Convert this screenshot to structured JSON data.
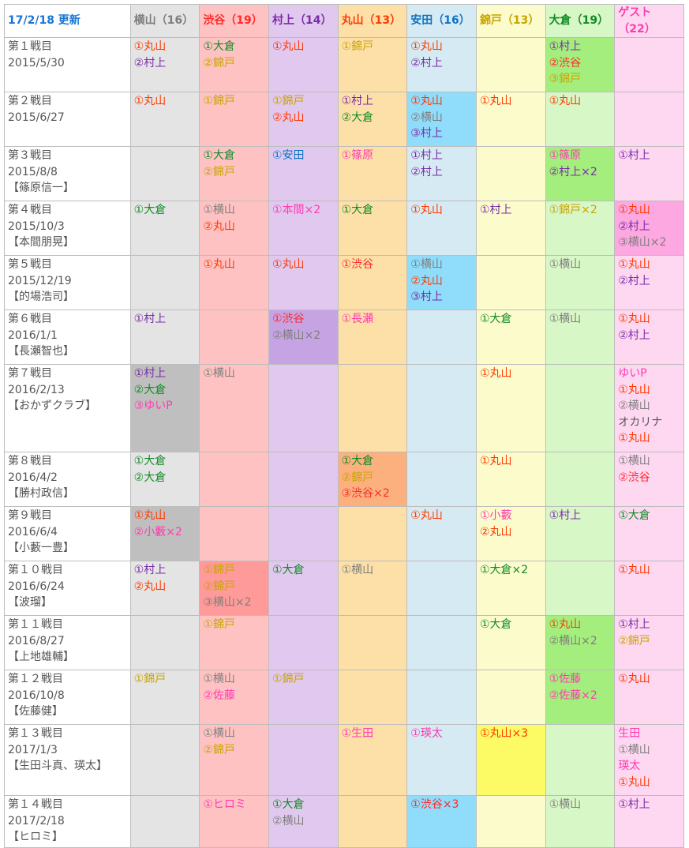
{
  "header": {
    "first": "17/2/18 更新",
    "first_color": "#1976d2",
    "members": [
      {
        "label": "横山（16）",
        "color": "#7d7d7d",
        "bg": "#e4e4e4",
        "hl": "#bfbfbf"
      },
      {
        "label": "渋谷（19）",
        "color": "#ff2a2a",
        "bg": "#ffc2c2",
        "hl": "#ff9a9a"
      },
      {
        "label": "村上（14）",
        "color": "#7a2ca8",
        "bg": "#e1c8ef",
        "hl": "#c6a4e4"
      },
      {
        "label": "丸山（13）",
        "color": "#ff3a00",
        "bg": "#fde0a8",
        "hl": "#fbb07e"
      },
      {
        "label": "安田（16）",
        "color": "#0d73c4",
        "bg": "#d6eaf3",
        "hl": "#8fdcfb"
      },
      {
        "label": "錦戸（13）",
        "color": "#c9a400",
        "bg": "#fcfbcc",
        "hl": "#fcfb66"
      },
      {
        "label": "大倉（19）",
        "color": "#0f8a26",
        "bg": "#d8f7c6",
        "hl": "#a4ee7d"
      },
      {
        "label": "ゲスト（22）",
        "color": "#ff3bb0",
        "bg": "#fed7f1",
        "hl": "#fda8e0"
      }
    ]
  },
  "person_colors": {
    "横山": "#7d7d7d",
    "渋谷": "#ff2a2a",
    "村上": "#7a2ca8",
    "丸山": "#ff3a00",
    "安田": "#0d73c4",
    "錦戸": "#c9a400",
    "大倉": "#0f8a26",
    "篠原": "#ff3bb0",
    "本間": "#ff3bb0",
    "長瀬": "#ff3bb0",
    "ゆいP": "#ff3bb0",
    "小藪": "#ff3bb0",
    "佐藤": "#ff3bb0",
    "生田": "#ff3bb0",
    "瑛太": "#ff3bb0",
    "ヒロミ": "#ff3bb0"
  },
  "rows": [
    {
      "title": "第１戦目",
      "date": "2015/5/30",
      "guest": "",
      "cells": [
        [
          "①丸山",
          "②村上"
        ],
        [
          "①大倉",
          "②錦戸"
        ],
        [
          "①丸山"
        ],
        [
          "①錦戸"
        ],
        [
          "①丸山",
          "②村上"
        ],
        [],
        [
          "①村上",
          "②渋谷",
          "③錦戸"
        ],
        []
      ],
      "hl": [
        false,
        false,
        false,
        false,
        false,
        false,
        true,
        false
      ]
    },
    {
      "title": "第２戦目",
      "date": "2015/6/27",
      "guest": "",
      "cells": [
        [
          "①丸山"
        ],
        [
          "①錦戸"
        ],
        [
          "①錦戸",
          "②丸山"
        ],
        [
          "①村上",
          "②大倉"
        ],
        [
          "①丸山",
          "②横山",
          "③村上"
        ],
        [
          "①丸山"
        ],
        [
          "①丸山"
        ],
        []
      ],
      "hl": [
        false,
        false,
        false,
        false,
        true,
        false,
        false,
        false
      ]
    },
    {
      "title": "第３戦目",
      "date": "2015/8/8",
      "guest": "【篠原信一】",
      "cells": [
        [],
        [
          "①大倉",
          "②錦戸"
        ],
        [
          "①安田"
        ],
        [
          "①篠原"
        ],
        [
          "①村上",
          "②村上"
        ],
        [],
        [
          "①篠原",
          "②村上×2"
        ],
        [
          "①村上"
        ]
      ],
      "hl": [
        false,
        false,
        false,
        false,
        false,
        false,
        true,
        false
      ]
    },
    {
      "title": "第４戦目",
      "date": "2015/10/3",
      "guest": "【本間朋晃】",
      "cells": [
        [
          "①大倉"
        ],
        [
          "①横山",
          "②丸山"
        ],
        [
          "①本間×2"
        ],
        [
          "①大倉"
        ],
        [
          "①丸山"
        ],
        [
          "①村上"
        ],
        [
          "①錦戸×2"
        ],
        [
          "①丸山",
          "②村上",
          "③横山×2"
        ]
      ],
      "hl": [
        false,
        false,
        false,
        false,
        false,
        false,
        false,
        true
      ]
    },
    {
      "title": "第５戦目",
      "date": "2015/12/19",
      "guest": "【的場浩司】",
      "cells": [
        [],
        [
          "①丸山"
        ],
        [
          "①丸山"
        ],
        [
          "①渋谷"
        ],
        [
          "①横山",
          "②丸山",
          "③村上"
        ],
        [],
        [
          "①横山"
        ],
        [
          "①丸山",
          "②村上"
        ]
      ],
      "hl": [
        false,
        false,
        false,
        false,
        true,
        false,
        false,
        false
      ]
    },
    {
      "title": "第６戦目",
      "date": "2016/1/1",
      "guest": "【長瀬智也】",
      "cells": [
        [
          "①村上"
        ],
        [],
        [
          "①渋谷",
          "②横山×2"
        ],
        [
          "①長瀬"
        ],
        [],
        [
          "①大倉"
        ],
        [
          "①横山"
        ],
        [
          "①丸山",
          "②村上"
        ]
      ],
      "hl": [
        false,
        false,
        true,
        false,
        false,
        false,
        false,
        false
      ]
    },
    {
      "title": "第７戦目",
      "date": "2016/2/13",
      "guest": "【おかずクラブ】",
      "cells": [
        [
          "①村上",
          "②大倉",
          "③ゆいP"
        ],
        [
          "①横山"
        ],
        [],
        [],
        [],
        [
          "①丸山"
        ],
        [],
        [
          "ゆいP",
          "①丸山",
          "②横山",
          "オカリナ",
          "①丸山"
        ]
      ],
      "hl": [
        true,
        false,
        false,
        false,
        false,
        false,
        false,
        false
      ]
    },
    {
      "title": "第８戦目",
      "date": "2016/4/2",
      "guest": "【勝村政信】",
      "cells": [
        [
          "①大倉",
          "②大倉"
        ],
        [],
        [],
        [
          "①大倉",
          "②錦戸",
          "③渋谷×2"
        ],
        [],
        [
          "①丸山"
        ],
        [],
        [
          "①横山",
          "②渋谷"
        ]
      ],
      "hl": [
        false,
        false,
        false,
        true,
        false,
        false,
        false,
        false
      ]
    },
    {
      "title": "第９戦目",
      "date": "2016/6/4",
      "guest": "【小藪一豊】",
      "cells": [
        [
          "①丸山",
          "②小藪×2"
        ],
        [],
        [],
        [],
        [
          "①丸山"
        ],
        [
          "①小藪",
          "②丸山"
        ],
        [
          "①村上"
        ],
        [
          "①大倉"
        ]
      ],
      "hl": [
        true,
        false,
        false,
        false,
        false,
        false,
        false,
        false
      ]
    },
    {
      "title": "第１０戦目",
      "date": "2016/6/24",
      "guest": "【波瑠】",
      "cells": [
        [
          "①村上",
          "②丸山"
        ],
        [
          "①錦戸",
          "②錦戸",
          "③横山×2"
        ],
        [
          "①大倉"
        ],
        [
          "①横山"
        ],
        [],
        [
          "①大倉×2"
        ],
        [],
        [
          "①丸山"
        ]
      ],
      "hl": [
        false,
        true,
        false,
        false,
        false,
        false,
        false,
        false
      ]
    },
    {
      "title": "第１１戦目",
      "date": "2016/8/27",
      "guest": "【上地雄輔】",
      "cells": [
        [],
        [
          "①錦戸"
        ],
        [],
        [],
        [],
        [
          "①大倉"
        ],
        [
          "①丸山",
          "②横山×2"
        ],
        [
          "①村上",
          "②錦戸"
        ]
      ],
      "hl": [
        false,
        false,
        false,
        false,
        false,
        false,
        true,
        false
      ]
    },
    {
      "title": "第１２戦目",
      "date": "2016/10/8",
      "guest": "【佐藤健】",
      "cells": [
        [
          "①錦戸"
        ],
        [
          "①横山",
          "②佐藤"
        ],
        [
          "①錦戸"
        ],
        [],
        [],
        [],
        [
          "①佐藤",
          "②佐藤×2"
        ],
        [
          "①丸山"
        ]
      ],
      "hl": [
        false,
        false,
        false,
        false,
        false,
        false,
        true,
        false
      ]
    },
    {
      "title": "第１３戦目",
      "date": "2017/1/3",
      "guest": "【生田斗真、瑛太】",
      "cells": [
        [],
        [
          "①横山",
          "②錦戸"
        ],
        [],
        [
          "①生田"
        ],
        [
          "①瑛太"
        ],
        [
          "①丸山×3"
        ],
        [],
        [
          "生田",
          "①横山",
          "瑛太",
          "①丸山"
        ]
      ],
      "hl": [
        false,
        false,
        false,
        false,
        false,
        true,
        false,
        false
      ]
    },
    {
      "title": "第１４戦目",
      "date": "2017/2/18",
      "guest": "【ヒロミ】",
      "cells": [
        [],
        [
          "①ヒロミ"
        ],
        [
          "①大倉",
          "②横山"
        ],
        [],
        [
          "①渋谷×3"
        ],
        [],
        [
          "①横山"
        ],
        [
          "①村上"
        ]
      ],
      "hl": [
        false,
        false,
        false,
        false,
        true,
        false,
        false,
        false
      ]
    }
  ]
}
